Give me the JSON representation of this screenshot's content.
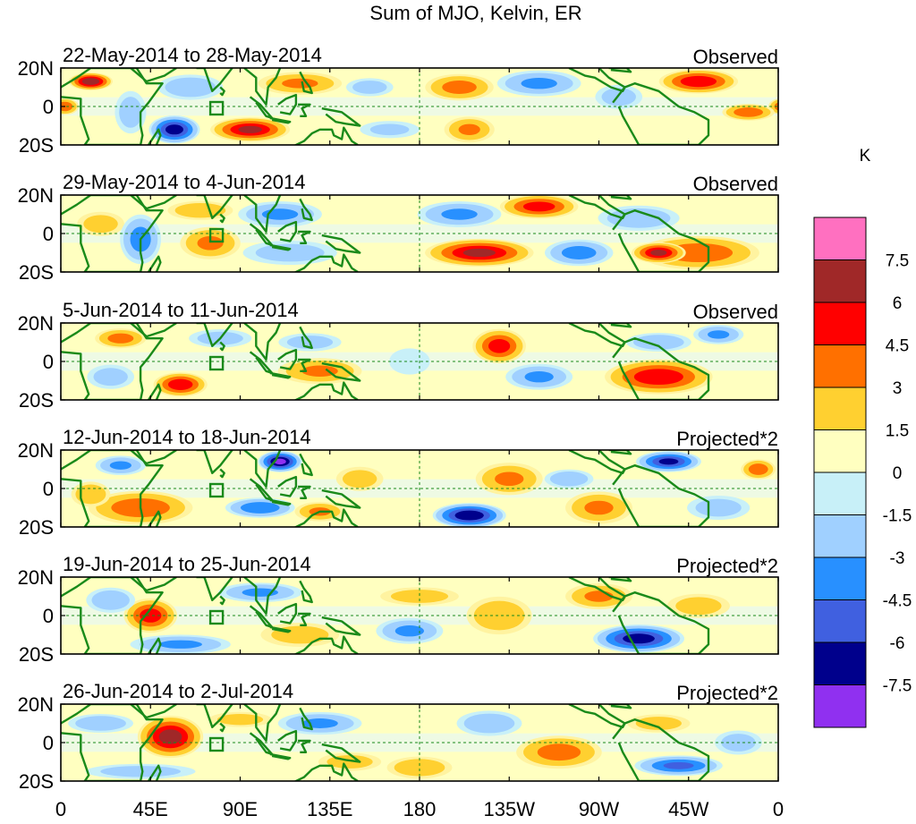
{
  "chart_data": {
    "type": "heatmap",
    "title": "Sum of MJO, Kelvin, ER",
    "x_tick_labels": [
      "0",
      "45E",
      "90E",
      "135E",
      "180",
      "135W",
      "90W",
      "45W",
      "0"
    ],
    "x_tick_lons": [
      0,
      45,
      90,
      135,
      180,
      225,
      270,
      315,
      360
    ],
    "y_tick_labels": [
      "20N",
      "0",
      "20S"
    ],
    "y_tick_lats": [
      20,
      0,
      -20
    ],
    "xlim": [
      0,
      360
    ],
    "ylim": [
      -20,
      20
    ],
    "colorbar": {
      "unit": "K",
      "levels": [
        "7.5",
        "6",
        "4.5",
        "3",
        "1.5",
        "0",
        "-1.5",
        "-3",
        "-4.5",
        "-6",
        "-7.5"
      ],
      "colors": [
        "#ff70c0",
        "#a02828",
        "#ff0000",
        "#ff7000",
        "#ffd030",
        "#ffffc0",
        "#c8f0f8",
        "#a0d0ff",
        "#2890ff",
        "#4060e0",
        "#00008c",
        "#9030f0"
      ]
    },
    "panels": [
      {
        "date_range": "22-May-2014 to 28-May-2014",
        "label": "Observed",
        "anomalies": [
          {
            "lon": 15,
            "lat": 13,
            "rlon": 12,
            "rlat": 5,
            "value": 7.0
          },
          {
            "lon": 2,
            "lat": 0,
            "rlon": 8,
            "rlat": 5,
            "value": 4.0
          },
          {
            "lon": 35,
            "lat": -3,
            "rlon": 10,
            "rlat": 14,
            "value": -2.0
          },
          {
            "lon": 57,
            "lat": -12,
            "rlon": 14,
            "rlat": 8,
            "value": -6.5
          },
          {
            "lon": 95,
            "lat": -12,
            "rlon": 22,
            "rlat": 7,
            "value": 6.0
          },
          {
            "lon": 65,
            "lat": 10,
            "rlon": 20,
            "rlat": 8,
            "value": -2.5
          },
          {
            "lon": 120,
            "lat": 12,
            "rlon": 25,
            "rlat": 7,
            "value": 3.0
          },
          {
            "lon": 155,
            "lat": 10,
            "rlon": 15,
            "rlat": 6,
            "value": -2.0
          },
          {
            "lon": 165,
            "lat": -12,
            "rlon": 20,
            "rlat": 6,
            "value": -1.5
          },
          {
            "lon": 200,
            "lat": 10,
            "rlon": 20,
            "rlat": 8,
            "value": 3.5
          },
          {
            "lon": 205,
            "lat": -12,
            "rlon": 15,
            "rlat": 8,
            "value": 3.0
          },
          {
            "lon": 240,
            "lat": 12,
            "rlon": 25,
            "rlat": 8,
            "value": -3.0
          },
          {
            "lon": 280,
            "lat": 5,
            "rlon": 15,
            "rlat": 8,
            "value": -2.0
          },
          {
            "lon": 320,
            "lat": 13,
            "rlon": 22,
            "rlat": 7,
            "value": 5.5
          },
          {
            "lon": 345,
            "lat": -3,
            "rlon": 15,
            "rlat": 5,
            "value": 4.0
          }
        ]
      },
      {
        "date_range": "29-May-2014 to 4-Jun-2014",
        "label": "Observed",
        "anomalies": [
          {
            "lon": 20,
            "lat": 5,
            "rlon": 15,
            "rlat": 8,
            "value": 2.0
          },
          {
            "lon": 40,
            "lat": -3,
            "rlon": 12,
            "rlat": 15,
            "value": -3.5
          },
          {
            "lon": 75,
            "lat": -5,
            "rlon": 18,
            "rlat": 10,
            "value": 3.0
          },
          {
            "lon": 70,
            "lat": 12,
            "rlon": 20,
            "rlat": 6,
            "value": 2.5
          },
          {
            "lon": 110,
            "lat": 10,
            "rlon": 25,
            "rlat": 8,
            "value": -3.0
          },
          {
            "lon": 115,
            "lat": -10,
            "rlon": 30,
            "rlat": 8,
            "value": -2.0
          },
          {
            "lon": 200,
            "lat": 10,
            "rlon": 25,
            "rlat": 8,
            "value": -3.0
          },
          {
            "lon": 240,
            "lat": 14,
            "rlon": 22,
            "rlat": 7,
            "value": 5.0
          },
          {
            "lon": 210,
            "lat": -10,
            "rlon": 30,
            "rlat": 8,
            "value": 6.0
          },
          {
            "lon": 260,
            "lat": -10,
            "rlon": 20,
            "rlat": 8,
            "value": -3.5
          },
          {
            "lon": 290,
            "lat": 8,
            "rlon": 25,
            "rlat": 8,
            "value": -2.5
          },
          {
            "lon": 320,
            "lat": -10,
            "rlon": 35,
            "rlat": 10,
            "value": 4.0
          },
          {
            "lon": 300,
            "lat": -10,
            "rlon": 15,
            "rlat": 6,
            "value": 6.0
          }
        ]
      },
      {
        "date_range": "5-Jun-2014 to 11-Jun-2014",
        "label": "Observed",
        "anomalies": [
          {
            "lon": 30,
            "lat": 12,
            "rlon": 15,
            "rlat": 6,
            "value": 3.5
          },
          {
            "lon": 60,
            "lat": -12,
            "rlon": 15,
            "rlat": 7,
            "value": 5.5
          },
          {
            "lon": 25,
            "lat": -8,
            "rlon": 15,
            "rlat": 8,
            "value": -2.0
          },
          {
            "lon": 80,
            "lat": 12,
            "rlon": 20,
            "rlat": 6,
            "value": -2.0
          },
          {
            "lon": 130,
            "lat": -5,
            "rlon": 25,
            "rlat": 8,
            "value": 3.0
          },
          {
            "lon": 125,
            "lat": 10,
            "rlon": 20,
            "rlat": 6,
            "value": -2.0
          },
          {
            "lon": 175,
            "lat": 0,
            "rlon": 15,
            "rlat": 10,
            "value": -1.0
          },
          {
            "lon": 220,
            "lat": 8,
            "rlon": 15,
            "rlat": 10,
            "value": 5.0
          },
          {
            "lon": 240,
            "lat": -8,
            "rlon": 20,
            "rlat": 8,
            "value": -3.0
          },
          {
            "lon": 300,
            "lat": -8,
            "rlon": 30,
            "rlat": 10,
            "value": 5.5
          },
          {
            "lon": 300,
            "lat": 10,
            "rlon": 20,
            "rlat": 6,
            "value": -2.5
          },
          {
            "lon": 330,
            "lat": 14,
            "rlon": 15,
            "rlat": 6,
            "value": -3.0
          }
        ]
      },
      {
        "date_range": "12-Jun-2014 to 18-Jun-2014",
        "label": "Projected*2",
        "anomalies": [
          {
            "lon": 30,
            "lat": 12,
            "rlon": 15,
            "rlat": 6,
            "value": -3.0
          },
          {
            "lon": 40,
            "lat": -10,
            "rlon": 30,
            "rlat": 10,
            "value": 4.0
          },
          {
            "lon": 15,
            "lat": -3,
            "rlon": 12,
            "rlat": 8,
            "value": 2.5
          },
          {
            "lon": 100,
            "lat": -10,
            "rlon": 20,
            "rlat": 6,
            "value": -4.0
          },
          {
            "lon": 110,
            "lat": 14,
            "rlon": 12,
            "rlat": 6,
            "value": -7.5
          },
          {
            "lon": 130,
            "lat": -12,
            "rlon": 15,
            "rlat": 6,
            "value": 3.0
          },
          {
            "lon": 150,
            "lat": 5,
            "rlon": 15,
            "rlat": 8,
            "value": 2.0
          },
          {
            "lon": 205,
            "lat": -14,
            "rlon": 20,
            "rlat": 7,
            "value": -7.0
          },
          {
            "lon": 225,
            "lat": 5,
            "rlon": 20,
            "rlat": 10,
            "value": 3.0
          },
          {
            "lon": 255,
            "lat": 5,
            "rlon": 15,
            "rlat": 6,
            "value": -2.5
          },
          {
            "lon": 270,
            "lat": -10,
            "rlon": 20,
            "rlat": 10,
            "value": 3.0
          },
          {
            "lon": 305,
            "lat": 14,
            "rlon": 18,
            "rlat": 6,
            "value": -6.0
          },
          {
            "lon": 350,
            "lat": 10,
            "rlon": 10,
            "rlat": 6,
            "value": 4.0
          },
          {
            "lon": 330,
            "lat": -10,
            "rlon": 20,
            "rlat": 8,
            "value": -2.0
          }
        ]
      },
      {
        "date_range": "19-Jun-2014 to 25-Jun-2014",
        "label": "Projected*2",
        "anomalies": [
          {
            "lon": 45,
            "lat": 0,
            "rlon": 15,
            "rlat": 10,
            "value": 5.0
          },
          {
            "lon": 25,
            "lat": 8,
            "rlon": 15,
            "rlat": 8,
            "value": -2.5
          },
          {
            "lon": 60,
            "lat": -15,
            "rlon": 30,
            "rlat": 6,
            "value": -3.0
          },
          {
            "lon": 100,
            "lat": 12,
            "rlon": 25,
            "rlat": 6,
            "value": -3.0
          },
          {
            "lon": 120,
            "lat": -10,
            "rlon": 25,
            "rlat": 8,
            "value": 2.0
          },
          {
            "lon": 175,
            "lat": -8,
            "rlon": 20,
            "rlat": 8,
            "value": -3.0
          },
          {
            "lon": 180,
            "lat": 10,
            "rlon": 25,
            "rlat": 6,
            "value": 2.0
          },
          {
            "lon": 220,
            "lat": 0,
            "rlon": 20,
            "rlat": 12,
            "value": 2.5
          },
          {
            "lon": 270,
            "lat": 10,
            "rlon": 20,
            "rlat": 8,
            "value": 3.0
          },
          {
            "lon": 290,
            "lat": -12,
            "rlon": 25,
            "rlat": 8,
            "value": -6.5
          },
          {
            "lon": 320,
            "lat": 5,
            "rlon": 20,
            "rlat": 8,
            "value": 2.0
          }
        ]
      },
      {
        "date_range": "26-Jun-2014 to 2-Jul-2014",
        "label": "Projected*2",
        "anomalies": [
          {
            "lon": 55,
            "lat": 3,
            "rlon": 18,
            "rlat": 12,
            "value": 6.5
          },
          {
            "lon": 20,
            "lat": 10,
            "rlon": 20,
            "rlat": 6,
            "value": -2.5
          },
          {
            "lon": 40,
            "lat": -15,
            "rlon": 35,
            "rlat": 5,
            "value": -2.0
          },
          {
            "lon": 90,
            "lat": 12,
            "rlon": 20,
            "rlat": 5,
            "value": 2.0
          },
          {
            "lon": 130,
            "lat": 10,
            "rlon": 25,
            "rlat": 7,
            "value": -3.0
          },
          {
            "lon": 145,
            "lat": -10,
            "rlon": 20,
            "rlat": 6,
            "value": 2.0
          },
          {
            "lon": 180,
            "lat": -13,
            "rlon": 20,
            "rlat": 7,
            "value": 2.5
          },
          {
            "lon": 215,
            "lat": 10,
            "rlon": 20,
            "rlat": 8,
            "value": -2.5
          },
          {
            "lon": 250,
            "lat": -5,
            "rlon": 25,
            "rlat": 10,
            "value": 3.5
          },
          {
            "lon": 300,
            "lat": 10,
            "rlon": 20,
            "rlat": 6,
            "value": 2.0
          },
          {
            "lon": 310,
            "lat": -12,
            "rlon": 25,
            "rlat": 6,
            "value": -4.5
          },
          {
            "lon": 340,
            "lat": 0,
            "rlon": 15,
            "rlat": 8,
            "value": -2.0
          }
        ]
      }
    ]
  }
}
